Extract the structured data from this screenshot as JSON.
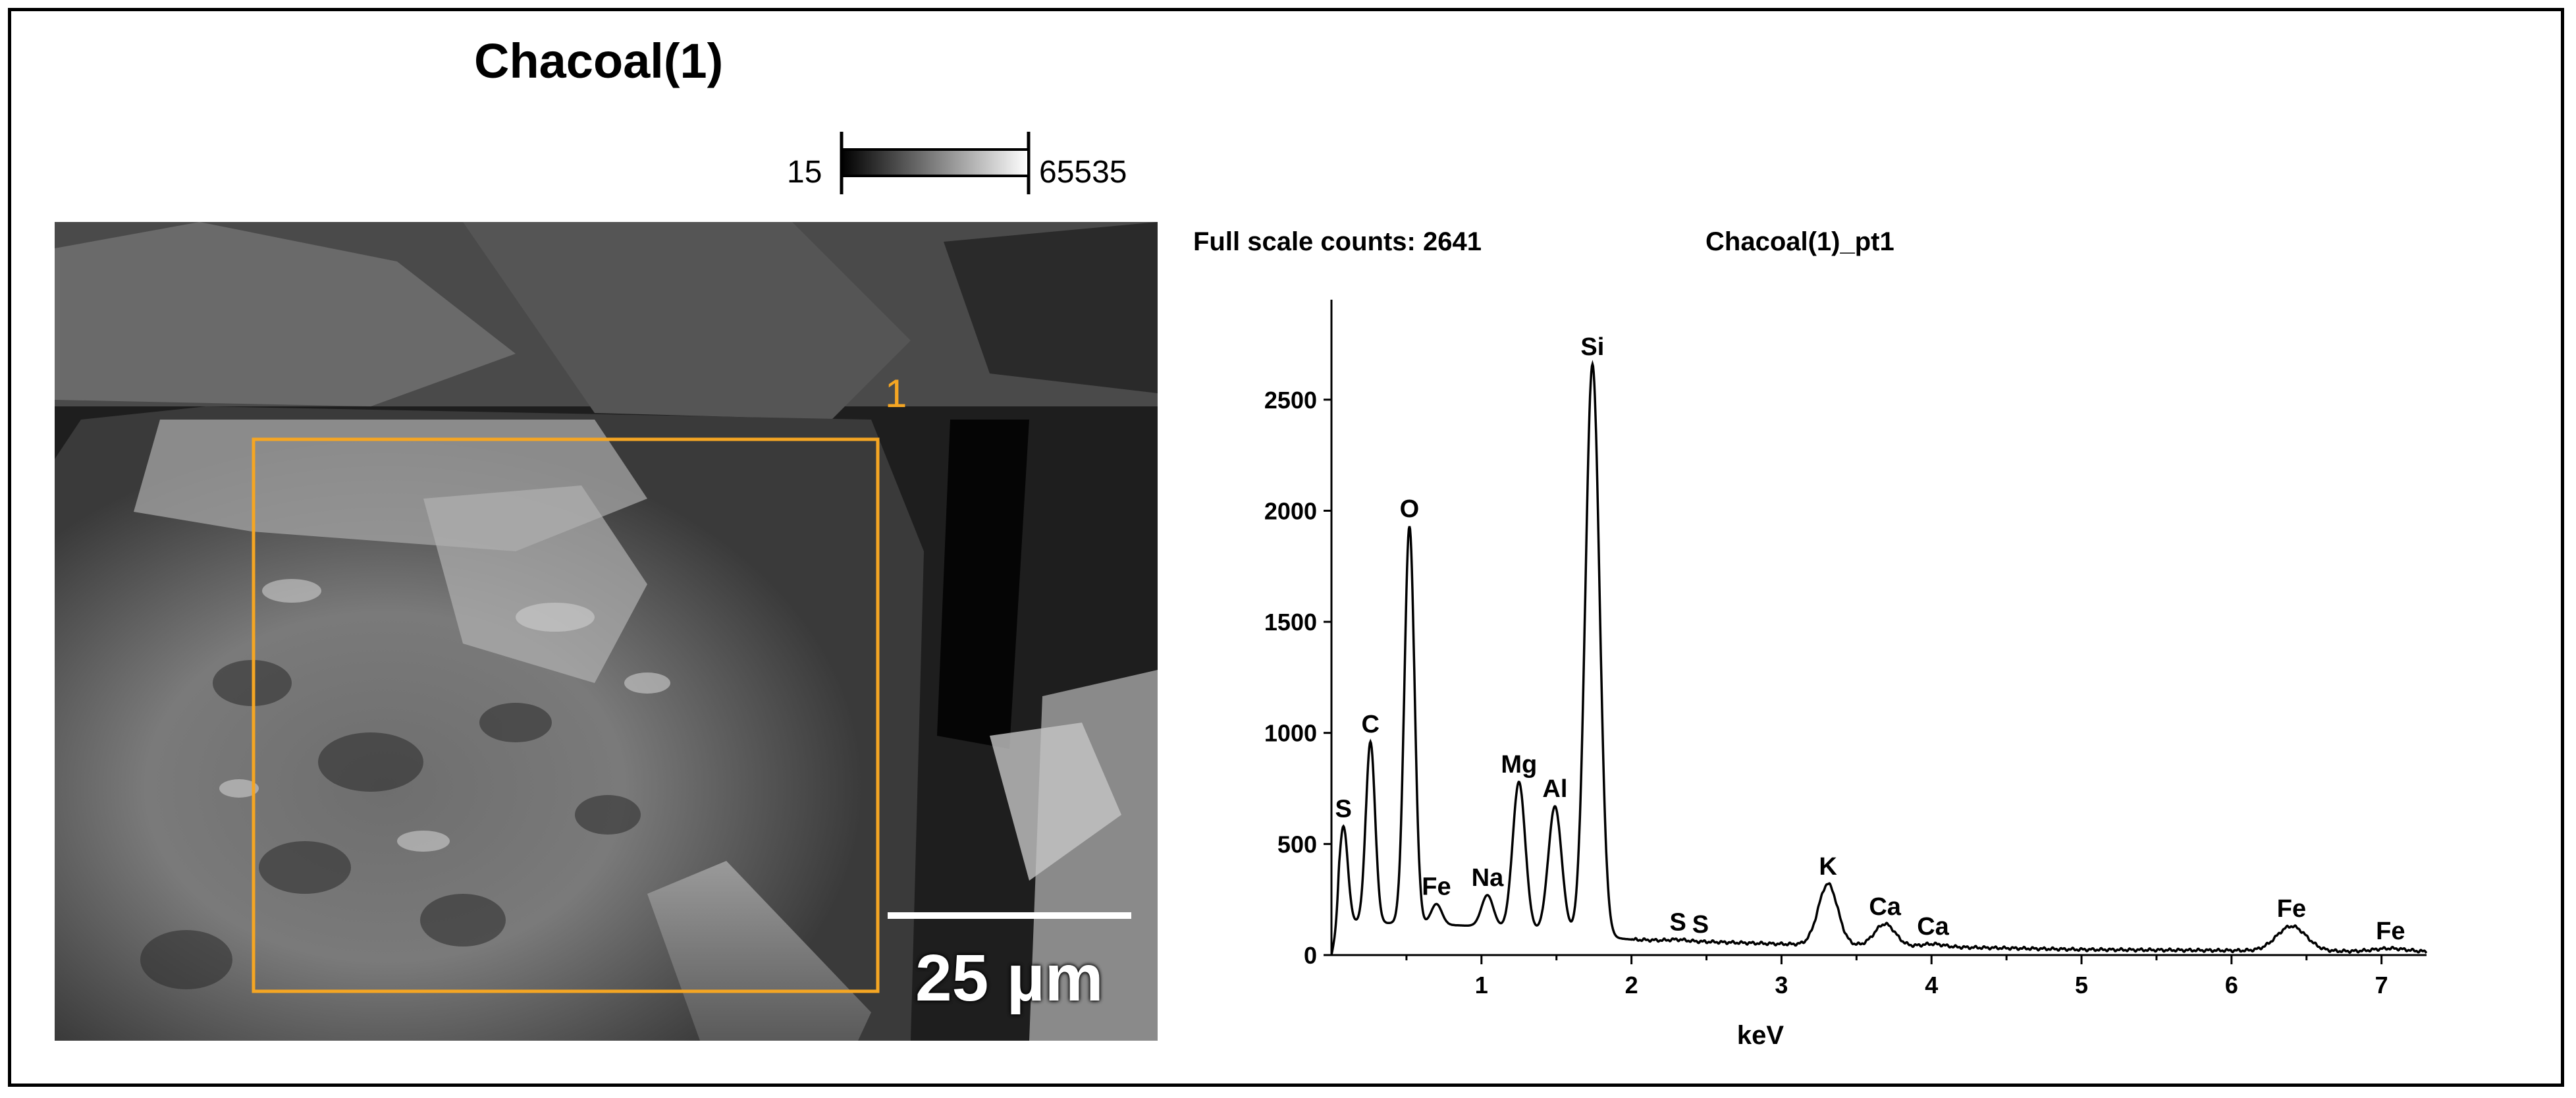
{
  "sample_title": "Chacoal(1)",
  "colorbar": {
    "min_label": "15",
    "max_label": "65535"
  },
  "sem_image": {
    "scale_bar_label": "25 µm",
    "roi_label": "1",
    "roi_color": "#f5a623"
  },
  "spectrum_header": {
    "full_scale": "Full scale counts: 2641",
    "name": "Chacoal(1)_pt1"
  },
  "chart_data": {
    "type": "line",
    "title": "",
    "xlabel": "keV",
    "ylabel": "",
    "xlim": [
      0,
      7.3
    ],
    "ylim": [
      0,
      2950
    ],
    "x_ticks": [
      1,
      2,
      3,
      4,
      5,
      6,
      7
    ],
    "x_tick_labels": [
      "1",
      "2",
      "3",
      "4",
      "5",
      "6",
      "7"
    ],
    "y_ticks": [
      0,
      500,
      1000,
      1500,
      2000,
      2500
    ],
    "y_tick_labels": [
      "0",
      "500",
      "1000",
      "1500",
      "2000",
      "2500"
    ],
    "background": [
      [
        0,
        150
      ],
      [
        0.6,
        140
      ],
      [
        1.0,
        130
      ],
      [
        2.0,
        70
      ],
      [
        3.0,
        50
      ],
      [
        5.0,
        25
      ],
      [
        7.3,
        15
      ]
    ],
    "peaks": [
      {
        "label": "S",
        "x": 0.08,
        "y": 580
      },
      {
        "label": "C",
        "x": 0.26,
        "y": 960
      },
      {
        "label": "O",
        "x": 0.52,
        "y": 1930
      },
      {
        "label": "Fe",
        "x": 0.7,
        "y": 230
      },
      {
        "label": "Na",
        "x": 1.04,
        "y": 270
      },
      {
        "label": "Mg",
        "x": 1.25,
        "y": 780
      },
      {
        "label": "Al",
        "x": 1.49,
        "y": 670
      },
      {
        "label": "Si",
        "x": 1.74,
        "y": 2660
      },
      {
        "label": "S",
        "x": 2.31,
        "y": 70
      },
      {
        "label": "S",
        "x": 2.46,
        "y": 60
      },
      {
        "label": "K",
        "x": 3.31,
        "y": 320
      },
      {
        "label": "Ca",
        "x": 3.69,
        "y": 140
      },
      {
        "label": "Ca",
        "x": 4.01,
        "y": 50
      },
      {
        "label": "Fe",
        "x": 6.4,
        "y": 130
      },
      {
        "label": "Fe",
        "x": 7.06,
        "y": 30
      }
    ]
  }
}
